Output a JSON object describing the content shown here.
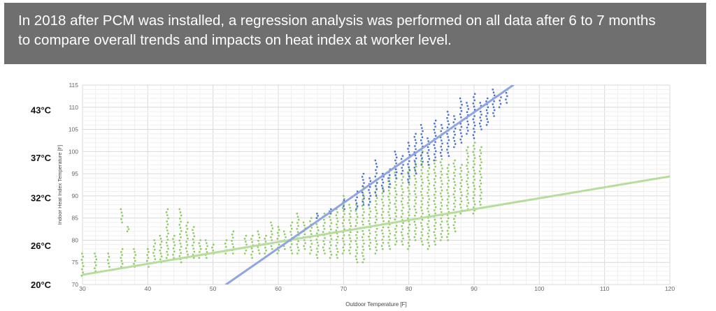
{
  "banner": {
    "line1": "In 2018 after PCM was installed, a regression analysis was performed on all data after 6 to 7 months",
    "line2": "to compare overall trends and impacts on heat index at worker level."
  },
  "chart_data": {
    "type": "scatter",
    "xlabel": "Outdoor Temperature [F]",
    "ylabel": "Indoor Heat Index Temperature [F]",
    "xlim": [
      30,
      120
    ],
    "ylim": [
      70,
      115
    ],
    "xticks": [
      "30",
      "40",
      "50",
      "60",
      "70",
      "80",
      "90",
      "100",
      "110",
      "120"
    ],
    "yticks": [
      "70",
      "75",
      "80",
      "85",
      "90",
      "95",
      "100",
      "105",
      "110",
      "115"
    ],
    "celsius_labels": [
      {
        "label": "43°C",
        "y": 109.4
      },
      {
        "label": "37°C",
        "y": 98.6
      },
      {
        "label": "32°C",
        "y": 89.6
      },
      {
        "label": "26°C",
        "y": 78.8
      },
      {
        "label": "20°C",
        "y": 68
      }
    ],
    "grid": true,
    "colors": {
      "green": "#8cc860",
      "blue": "#4a6fd0",
      "green_fit": "#b6dd9b",
      "blue_fit": "#8fa5e0"
    },
    "series": [
      {
        "color": "#8cc860",
        "columns": [
          [
            30,
            72,
            77
          ],
          [
            32,
            73,
            77
          ],
          [
            34,
            74,
            77
          ],
          [
            36,
            74,
            78
          ],
          [
            36,
            84,
            87
          ],
          [
            37,
            82,
            83
          ],
          [
            38,
            74,
            78
          ],
          [
            40,
            74,
            78
          ],
          [
            41,
            75,
            80
          ],
          [
            42,
            75,
            81
          ],
          [
            43,
            76,
            87
          ],
          [
            44,
            76,
            81
          ],
          [
            45,
            75,
            87
          ],
          [
            46,
            76,
            84
          ],
          [
            47,
            76,
            83
          ],
          [
            48,
            76,
            80
          ],
          [
            49,
            76,
            80
          ],
          [
            50,
            77,
            79
          ],
          [
            52,
            77,
            80
          ],
          [
            53,
            77,
            82
          ],
          [
            55,
            77,
            81
          ],
          [
            56,
            76,
            81
          ],
          [
            57,
            77,
            82
          ],
          [
            58,
            77,
            81
          ],
          [
            59,
            78,
            84
          ],
          [
            60,
            77,
            83
          ],
          [
            61,
            78,
            82
          ],
          [
            62,
            77,
            84
          ],
          [
            63,
            77,
            86
          ],
          [
            64,
            78,
            84
          ],
          [
            65,
            77,
            85
          ],
          [
            66,
            76,
            85
          ],
          [
            67,
            77,
            86
          ],
          [
            68,
            76,
            86
          ],
          [
            69,
            76,
            87
          ],
          [
            70,
            77,
            90
          ],
          [
            71,
            77,
            88
          ],
          [
            72,
            75,
            88
          ],
          [
            73,
            75,
            92
          ],
          [
            74,
            78,
            90
          ],
          [
            75,
            77,
            93
          ],
          [
            76,
            78,
            92
          ],
          [
            77,
            78,
            94
          ],
          [
            78,
            79,
            96
          ],
          [
            79,
            79,
            95
          ],
          [
            80,
            78,
            96
          ],
          [
            81,
            80,
            98
          ],
          [
            82,
            79,
            100
          ],
          [
            83,
            78,
            97
          ],
          [
            84,
            79,
            98
          ],
          [
            85,
            80,
            99
          ],
          [
            86,
            80,
            97
          ],
          [
            87,
            82,
            98
          ],
          [
            88,
            86,
            97
          ],
          [
            89,
            87,
            101
          ],
          [
            90,
            86,
            102
          ],
          [
            91,
            88,
            101
          ]
        ]
      },
      {
        "color": "#4a6fd0",
        "columns": [
          [
            66,
            85,
            86
          ],
          [
            68,
            86,
            87
          ],
          [
            70,
            87,
            89
          ],
          [
            72,
            87,
            91
          ],
          [
            73,
            88,
            95
          ],
          [
            74,
            88,
            94
          ],
          [
            75,
            90,
            98
          ],
          [
            76,
            91,
            95
          ],
          [
            77,
            92,
            96
          ],
          [
            78,
            94,
            100
          ],
          [
            79,
            95,
            99
          ],
          [
            80,
            93,
            102
          ],
          [
            81,
            95,
            104
          ],
          [
            82,
            97,
            106
          ],
          [
            83,
            97,
            103
          ],
          [
            84,
            98,
            107
          ],
          [
            85,
            99,
            106
          ],
          [
            86,
            99,
            109
          ],
          [
            87,
            101,
            108
          ],
          [
            88,
            102,
            112
          ],
          [
            89,
            104,
            111
          ],
          [
            90,
            103,
            113
          ],
          [
            91,
            105,
            111
          ],
          [
            92,
            106,
            112
          ],
          [
            93,
            108,
            114
          ],
          [
            94,
            110,
            113
          ],
          [
            95,
            111,
            114
          ]
        ]
      }
    ],
    "fit_lines": [
      {
        "color": "#b6dd9b",
        "x": [
          30,
          120
        ],
        "y": [
          72.2,
          94.4
        ]
      },
      {
        "color": "#8fa5e0",
        "x": [
          52,
          96
        ],
        "y": [
          70,
          115
        ]
      }
    ]
  }
}
